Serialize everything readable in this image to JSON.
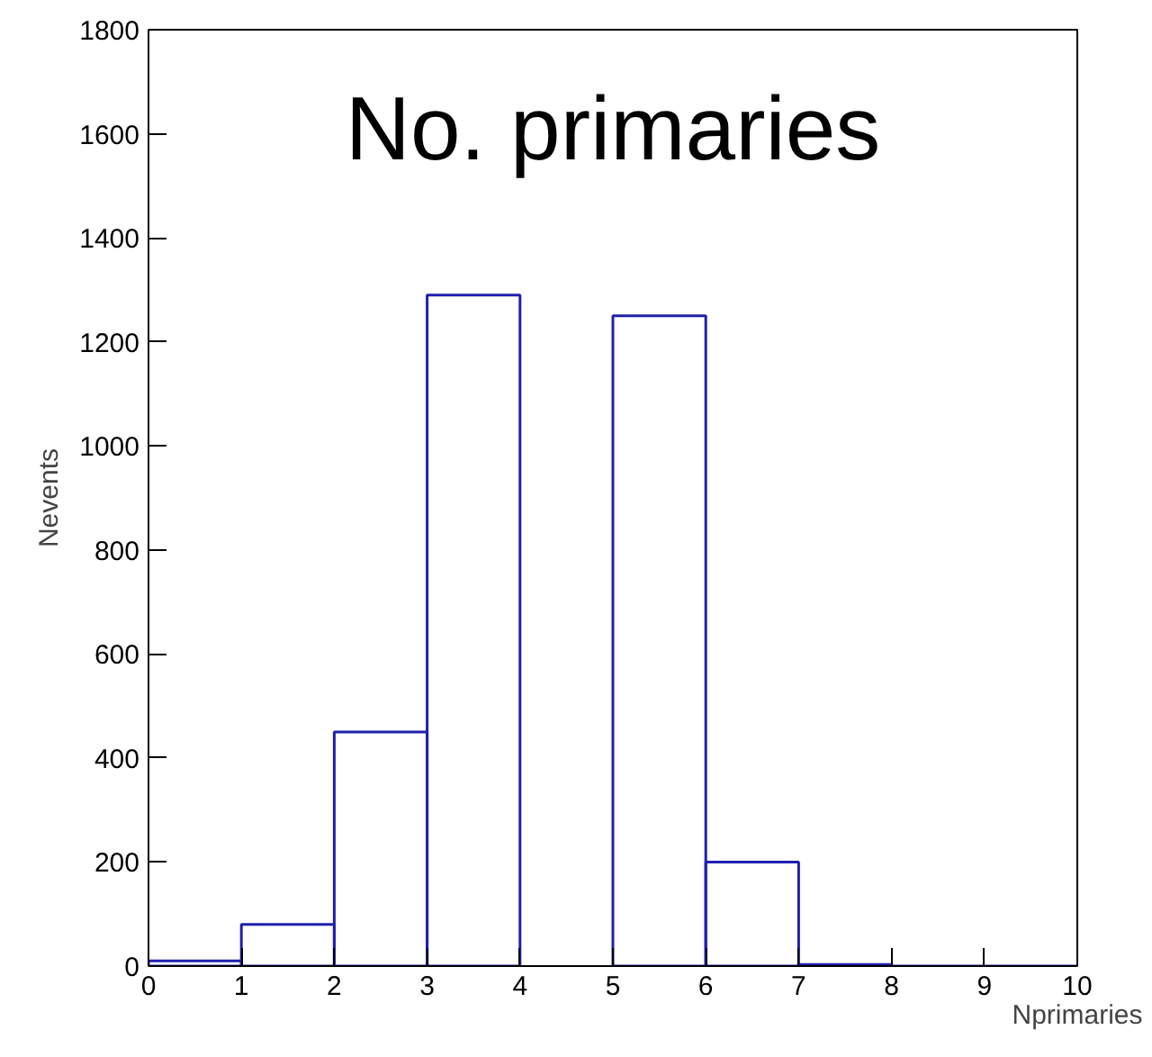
{
  "chart_data": {
    "type": "histogram",
    "title": "No. primaries",
    "xlabel": "Nprimaries",
    "ylabel": "Nevents",
    "bins": [
      0,
      1,
      2,
      3,
      4,
      5,
      6,
      7,
      8,
      9,
      10
    ],
    "values": [
      10,
      80,
      450,
      1290,
      null,
      1250,
      200,
      3,
      0,
      0
    ],
    "color": "#2020b0",
    "xlim": [
      0,
      10
    ],
    "xticks": [
      0,
      1,
      2,
      3,
      4,
      5,
      6,
      7,
      8,
      9,
      10
    ],
    "ylim": [
      0,
      1800
    ],
    "yticks": [
      0,
      200,
      400,
      600,
      800,
      1000,
      1200,
      1400,
      1600,
      1800
    ],
    "grid": false
  }
}
